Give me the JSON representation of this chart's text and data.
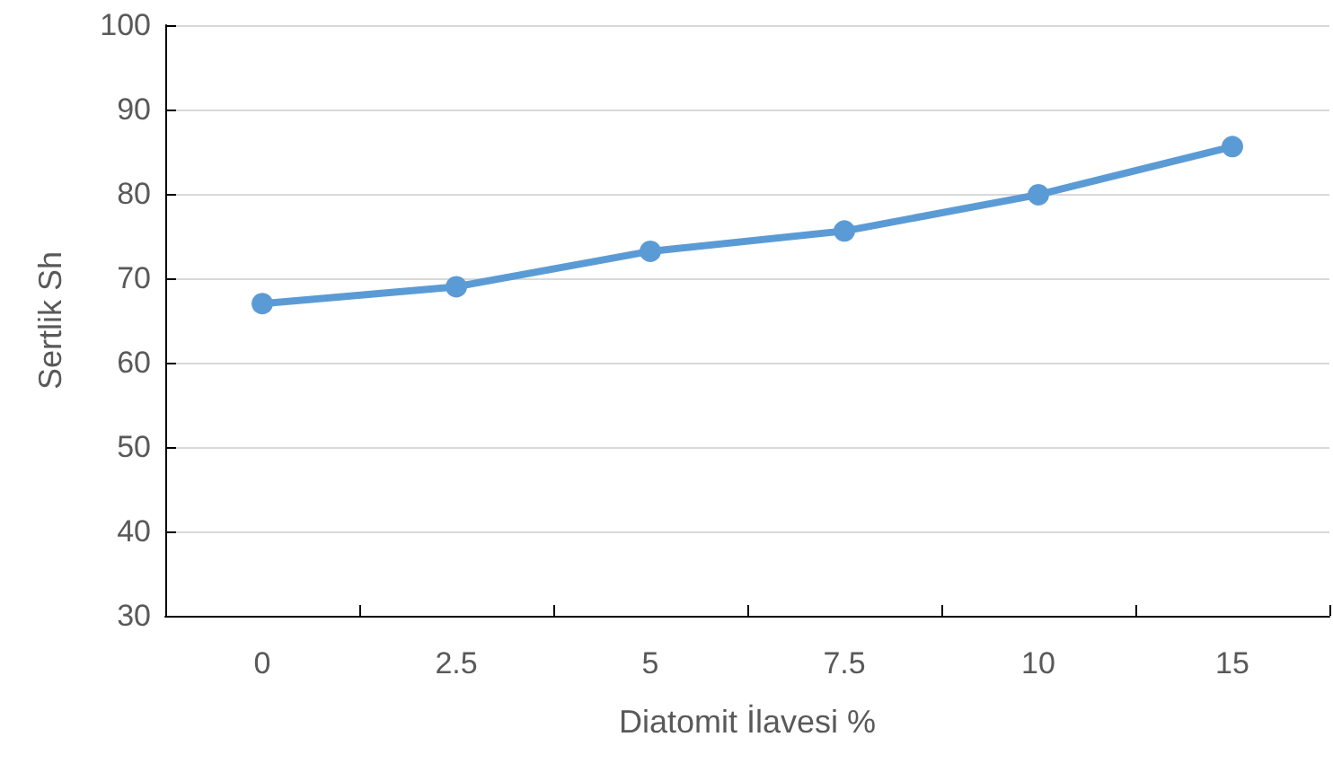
{
  "chart_data": {
    "type": "line",
    "xlabel": "Diatomit İlavesi %",
    "ylabel": "Sertlik Sh",
    "categories": [
      "0",
      "2.5",
      "5",
      "7.5",
      "10",
      "15"
    ],
    "series": [
      {
        "color": "#5b9bd5",
        "values": [
          67,
          69,
          73.2,
          75.6,
          79.9,
          85.6
        ]
      }
    ],
    "ylim": [
      30,
      100
    ],
    "yticks": [
      30,
      40,
      50,
      60,
      70,
      80,
      90,
      100
    ],
    "grid": "y",
    "marker": "circle",
    "line_style": "solid"
  }
}
